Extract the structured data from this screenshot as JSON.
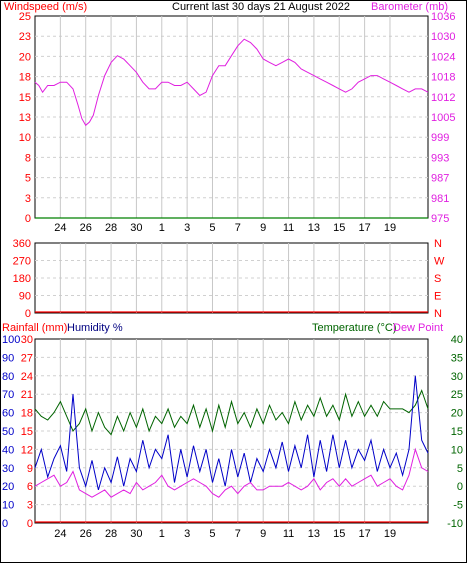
{
  "chart_data": [
    {
      "type": "line",
      "title": "Current last 30 days 21 August 2022",
      "left_axis_label": "Windspeed (m/s)",
      "right_axis_label": "Barometer (mb)",
      "left_ticks": [
        0,
        3,
        5,
        8,
        10,
        13,
        15,
        18,
        20,
        23,
        25
      ],
      "right_ticks": [
        975,
        981,
        987,
        993,
        999,
        1005,
        1012,
        1018,
        1024,
        1030,
        1036
      ],
      "left_ylim": [
        0,
        25
      ],
      "right_ylim": [
        975,
        1036
      ],
      "x_ticks": [
        "24",
        "26",
        "28",
        "30",
        "1",
        "3",
        "5",
        "7",
        "9",
        "11",
        "13",
        "15",
        "17",
        "19"
      ],
      "grid": true,
      "colors": {
        "windspeed": "#008000",
        "barometer": "#e020e0",
        "left_axis": "#ff0000",
        "right_axis": "#e020e0"
      },
      "series": [
        {
          "name": "Windspeed (m/s)",
          "axis": "left",
          "x": [
            0,
            31
          ],
          "values": [
            0,
            0
          ]
        },
        {
          "name": "Barometer (mb)",
          "axis": "right",
          "x": [
            0,
            0.3,
            0.6,
            1,
            1.5,
            2,
            2.5,
            3,
            3.4,
            3.7,
            4.0,
            4.3,
            4.6,
            5,
            5.5,
            6,
            6.5,
            7,
            7.5,
            8,
            8.5,
            9,
            9.5,
            10,
            10.5,
            11,
            11.5,
            12,
            12.5,
            13,
            13.5,
            14,
            14.5,
            15,
            15.5,
            16,
            16.5,
            17,
            17.5,
            18,
            18.5,
            19,
            19.5,
            20,
            20.5,
            21,
            21.5,
            22,
            22.5,
            23,
            23.5,
            24,
            24.5,
            25,
            25.5,
            26,
            26.5,
            27,
            27.5,
            28,
            28.5,
            29,
            29.5,
            30,
            30.5,
            31
          ],
          "values": [
            1016,
            1015,
            1013,
            1015,
            1015,
            1016,
            1016,
            1014,
            1009,
            1005,
            1003,
            1004,
            1006,
            1012,
            1018,
            1022,
            1024,
            1023,
            1021,
            1019,
            1016,
            1014,
            1014,
            1016,
            1016,
            1015,
            1015,
            1016,
            1014,
            1012,
            1013,
            1018,
            1021,
            1021,
            1024,
            1027,
            1029,
            1028,
            1026,
            1023,
            1022,
            1021,
            1022,
            1023,
            1022,
            1020,
            1019,
            1018,
            1017,
            1016,
            1015,
            1014,
            1013,
            1014,
            1016,
            1017,
            1018,
            1018,
            1017,
            1016,
            1015,
            1014,
            1013,
            1014,
            1014,
            1013
          ]
        }
      ]
    },
    {
      "type": "line",
      "title": "",
      "left_ticks": [
        0,
        90,
        180,
        270,
        360
      ],
      "right_ticks": [
        "N",
        "E",
        "S",
        "W",
        "N"
      ],
      "ylim": [
        0,
        360
      ],
      "grid": true,
      "colors": {
        "axis": "#ff0000",
        "baseline": "#ff0000"
      },
      "series": []
    },
    {
      "type": "line",
      "title": "",
      "left_axis_label_1": "Rainfall (mm)",
      "left_axis_label_2": "Humidity %",
      "right_axis_label_1": "Temperature (°C)",
      "right_axis_label_2": "Dew Point",
      "rain_ticks": [
        0,
        3,
        6,
        9,
        12,
        15,
        18,
        21,
        24,
        27,
        30
      ],
      "humidity_ticks": [
        0,
        10,
        20,
        30,
        40,
        50,
        60,
        70,
        80,
        90,
        100
      ],
      "temperature_ticks": [
        -10,
        -5,
        0,
        5,
        10,
        15,
        20,
        25,
        30,
        35,
        40
      ],
      "rain_ylim": [
        0,
        30
      ],
      "humidity_ylim": [
        0,
        100
      ],
      "temperature_ylim": [
        -10,
        40
      ],
      "grid": true,
      "colors": {
        "rain": "#ff0000",
        "humidity": "#0000c8",
        "temperature": "#006400",
        "dewpoint": "#e020e0",
        "right_axis": "#006400"
      },
      "series": [
        {
          "name": "Temperature (°C)",
          "axis": "temperature",
          "x": [
            0,
            0.5,
            1,
            1.5,
            2,
            2.5,
            3,
            3.5,
            4,
            4.5,
            5,
            5.5,
            6,
            6.5,
            7,
            7.5,
            8,
            8.5,
            9,
            9.5,
            10,
            10.5,
            11,
            11.5,
            12,
            12.5,
            13,
            13.5,
            14,
            14.5,
            15,
            15.5,
            16,
            16.5,
            17,
            17.5,
            18,
            18.5,
            19,
            19.5,
            20,
            20.5,
            21,
            21.5,
            22,
            22.5,
            23,
            23.5,
            24,
            24.5,
            25,
            25.5,
            26,
            26.5,
            27,
            27.5,
            28,
            28.5,
            29,
            29.5,
            30,
            30.5,
            31
          ],
          "values": [
            21,
            19,
            18,
            20,
            23,
            19,
            15,
            17,
            21,
            15,
            20,
            16,
            14,
            19,
            15,
            20,
            16,
            21,
            15,
            19,
            17,
            21,
            16,
            19,
            17,
            22,
            16,
            21,
            15,
            22,
            16,
            23,
            17,
            20,
            16,
            21,
            17,
            22,
            18,
            20,
            17,
            23,
            18,
            22,
            19,
            24,
            19,
            22,
            18,
            25,
            19,
            23,
            19,
            22,
            19,
            23,
            21,
            21,
            21,
            20,
            22,
            26,
            21
          ]
        },
        {
          "name": "Dew Point",
          "axis": "temperature",
          "x": [
            0,
            0.5,
            1,
            1.5,
            2,
            2.5,
            3,
            3.5,
            4,
            4.5,
            5,
            5.5,
            6,
            6.5,
            7,
            7.5,
            8,
            8.5,
            9,
            9.5,
            10,
            10.5,
            11,
            11.5,
            12,
            12.5,
            13,
            13.5,
            14,
            14.5,
            15,
            15.5,
            16,
            16.5,
            17,
            17.5,
            18,
            18.5,
            19,
            19.5,
            20,
            20.5,
            21,
            21.5,
            22,
            22.5,
            23,
            23.5,
            24,
            24.5,
            25,
            25.5,
            26,
            26.5,
            27,
            27.5,
            28,
            28.5,
            29,
            29.5,
            30,
            30.5,
            31
          ],
          "values": [
            0,
            1,
            2,
            3,
            0,
            1,
            4,
            -1,
            -2,
            -3,
            -2,
            -1,
            -3,
            -2,
            -1,
            -2,
            1,
            -1,
            0,
            1,
            3,
            0,
            -1,
            0,
            1,
            2,
            1,
            0,
            -2,
            -3,
            -1,
            0,
            -2,
            0,
            1,
            -1,
            -1,
            0,
            0,
            0,
            1,
            0,
            -1,
            0,
            2,
            -1,
            1,
            2,
            0,
            2,
            0,
            1,
            2,
            3,
            0,
            1,
            2,
            0,
            -1,
            3,
            10,
            5,
            4
          ]
        },
        {
          "name": "Humidity %",
          "axis": "humidity",
          "x": [
            0,
            0.5,
            1,
            1.5,
            2,
            2.5,
            3,
            3.5,
            4,
            4.5,
            5,
            5.5,
            6,
            6.5,
            7,
            7.5,
            8,
            8.5,
            9,
            9.5,
            10,
            10.5,
            11,
            11.5,
            12,
            12.5,
            13,
            13.5,
            14,
            14.5,
            15,
            15.5,
            16,
            16.5,
            17,
            17.5,
            18,
            18.5,
            19,
            19.5,
            20,
            20.5,
            21,
            21.5,
            22,
            22.5,
            23,
            23.5,
            24,
            24.5,
            25,
            25.5,
            26,
            26.5,
            27,
            27.5,
            28,
            28.5,
            29,
            29.5,
            30,
            30.5,
            31
          ],
          "values": [
            30,
            40,
            25,
            35,
            42,
            28,
            70,
            30,
            20,
            34,
            18,
            30,
            22,
            36,
            20,
            35,
            28,
            45,
            30,
            40,
            35,
            48,
            22,
            40,
            25,
            42,
            28,
            40,
            22,
            35,
            20,
            40,
            25,
            38,
            22,
            35,
            28,
            40,
            30,
            44,
            28,
            42,
            30,
            48,
            25,
            45,
            28,
            48,
            30,
            45,
            30,
            40,
            34,
            45,
            28,
            40,
            30,
            38,
            26,
            40,
            80,
            45,
            38
          ]
        },
        {
          "name": "Rainfall (mm)",
          "axis": "rain",
          "x": [
            0,
            31
          ],
          "values": [
            0,
            0
          ]
        }
      ]
    }
  ]
}
